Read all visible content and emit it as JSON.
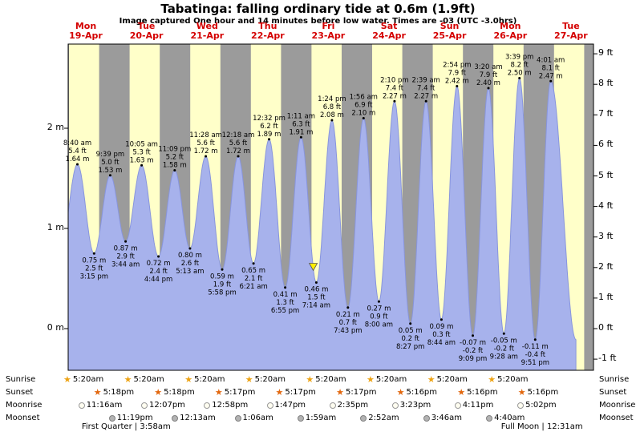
{
  "title": "Tabatinga: falling ordinary tide at 0.6m (1.9ft)",
  "subtitle": "Image captured One hour and 14 minutes before low water. Times are -03 (UTC -3.0hrs)",
  "colors": {
    "day_band": "#ffffc9",
    "night_band": "#9b9b9b",
    "tide_fill": "#a7b2ec",
    "tide_edge": "#8895dd",
    "day_label_red": "#d40000",
    "annotation_text": "#000000",
    "marker_yellow": "#ffee00",
    "sun_rise_icon": "#eda211",
    "sun_set_icon": "#e2670e",
    "moon_rise_fill": "#fffdf0",
    "moon_rise_border": "#999999",
    "moon_set_fill": "#b3b3b3",
    "moon_set_border": "#808080"
  },
  "chart_data": {
    "type": "area",
    "title": "Tide height curve for Tabatinga, 19-Apr to 27-Apr",
    "ylabel_left": "m",
    "ylabel_right": "ft",
    "ylim_m": [
      -0.42,
      2.84
    ],
    "grid": false,
    "days": [
      {
        "name": "Mon",
        "date": "19-Apr"
      },
      {
        "name": "Tue",
        "date": "20-Apr"
      },
      {
        "name": "Wed",
        "date": "21-Apr"
      },
      {
        "name": "Thu",
        "date": "22-Apr"
      },
      {
        "name": "Fri",
        "date": "23-Apr"
      },
      {
        "name": "Sat",
        "date": "24-Apr"
      },
      {
        "name": "Sun",
        "date": "25-Apr"
      },
      {
        "name": "Mon",
        "date": "26-Apr"
      },
      {
        "name": "Tue",
        "date": "27-Apr"
      }
    ],
    "axis": {
      "left_labels": [
        "2 m",
        "1 m",
        "0 m"
      ],
      "left_values": [
        2,
        1,
        0
      ],
      "right_labels": [
        "9 ft",
        "8 ft",
        "7 ft",
        "6 ft",
        "5 ft",
        "4 ft",
        "3 ft",
        "2 ft",
        "1 ft",
        "0 ft",
        "-1 ft"
      ],
      "right_values": [
        9,
        8,
        7,
        6,
        5,
        4,
        3,
        2,
        1,
        0,
        -1
      ]
    },
    "daylight": {
      "sunrise_hour": 5.33,
      "sunset_hour": 17.28
    },
    "current_time_marker": {
      "day": 4,
      "time": "6:00 am",
      "m": 0.58
    },
    "extremes": [
      {
        "kind": "low",
        "day": 0,
        "time": "2:20 am",
        "m": 0.86,
        "annotate": false
      },
      {
        "kind": "high",
        "day": 0,
        "time": "8:40 am",
        "m": 1.64,
        "ft": "5.4 ft",
        "m_label": "1.64 m",
        "annotate": true
      },
      {
        "kind": "low",
        "day": 0,
        "time": "3:15 pm",
        "m": 0.75,
        "ft": "2.5 ft",
        "m_label": "0.75 m",
        "annotate": true
      },
      {
        "kind": "high",
        "day": 0,
        "time": "9:39 pm",
        "m": 1.53,
        "ft": "5.0 ft",
        "m_label": "1.53 m",
        "annotate": true
      },
      {
        "kind": "low",
        "day": 1,
        "time": "3:44 am",
        "m": 0.87,
        "ft": "2.9 ft",
        "m_label": "0.87 m",
        "annotate": true
      },
      {
        "kind": "high",
        "day": 1,
        "time": "10:05 am",
        "m": 1.63,
        "ft": "5.3 ft",
        "m_label": "1.63 m",
        "annotate": true
      },
      {
        "kind": "low",
        "day": 1,
        "time": "4:44 pm",
        "m": 0.72,
        "ft": "2.4 ft",
        "m_label": "0.72 m",
        "annotate": true
      },
      {
        "kind": "high",
        "day": 1,
        "time": "11:09 pm",
        "m": 1.58,
        "ft": "5.2 ft",
        "m_label": "1.58 m",
        "annotate": true
      },
      {
        "kind": "low",
        "day": 2,
        "time": "5:13 am",
        "m": 0.8,
        "ft": "2.6 ft",
        "m_label": "0.80 m",
        "annotate": true
      },
      {
        "kind": "high",
        "day": 2,
        "time": "11:28 am",
        "m": 1.72,
        "ft": "5.6 ft",
        "m_label": "1.72 m",
        "annotate": true
      },
      {
        "kind": "low",
        "day": 2,
        "time": "5:58 pm",
        "m": 0.59,
        "ft": "1.9 ft",
        "m_label": "0.59 m",
        "annotate": true
      },
      {
        "kind": "high",
        "day": 3,
        "time": "12:18 am",
        "m": 1.72,
        "ft": "5.6 ft",
        "m_label": "1.72 m",
        "annotate": true
      },
      {
        "kind": "low",
        "day": 3,
        "time": "6:21 am",
        "m": 0.65,
        "ft": "2.1 ft",
        "m_label": "0.65 m",
        "annotate": true
      },
      {
        "kind": "high",
        "day": 3,
        "time": "12:32 pm",
        "m": 1.89,
        "ft": "6.2 ft",
        "m_label": "1.89 m",
        "annotate": true
      },
      {
        "kind": "low",
        "day": 3,
        "time": "6:55 pm",
        "m": 0.41,
        "ft": "1.3 ft",
        "m_label": "0.41 m",
        "annotate": true
      },
      {
        "kind": "high",
        "day": 4,
        "time": "1:11 am",
        "m": 1.91,
        "ft": "6.3 ft",
        "m_label": "1.91 m",
        "annotate": true
      },
      {
        "kind": "low",
        "day": 4,
        "time": "7:14 am",
        "m": 0.46,
        "ft": "1.5 ft",
        "m_label": "0.46 m",
        "annotate": true
      },
      {
        "kind": "high",
        "day": 4,
        "time": "1:24 pm",
        "m": 2.08,
        "ft": "6.8 ft",
        "m_label": "2.08 m",
        "annotate": true
      },
      {
        "kind": "low",
        "day": 4,
        "time": "7:43 pm",
        "m": 0.21,
        "ft": "0.7 ft",
        "m_label": "0.21 m",
        "annotate": true
      },
      {
        "kind": "high",
        "day": 5,
        "time": "1:56 am",
        "m": 2.1,
        "ft": "6.9 ft",
        "m_label": "2.10 m",
        "annotate": true
      },
      {
        "kind": "low",
        "day": 5,
        "time": "8:00 am",
        "m": 0.27,
        "ft": "0.9 ft",
        "m_label": "0.27 m",
        "annotate": true
      },
      {
        "kind": "high",
        "day": 5,
        "time": "2:10 pm",
        "m": 2.27,
        "ft": "7.4 ft",
        "m_label": "2.27 m",
        "annotate": true
      },
      {
        "kind": "low",
        "day": 5,
        "time": "8:27 pm",
        "m": 0.05,
        "ft": "0.2 ft",
        "m_label": "0.05 m",
        "annotate": true
      },
      {
        "kind": "high",
        "day": 6,
        "time": "2:39 am",
        "m": 2.27,
        "ft": "7.4 ft",
        "m_label": "2.27 m",
        "annotate": true
      },
      {
        "kind": "low",
        "day": 6,
        "time": "8:44 am",
        "m": 0.09,
        "ft": "0.3 ft",
        "m_label": "0.09 m",
        "annotate": true
      },
      {
        "kind": "high",
        "day": 6,
        "time": "2:54 pm",
        "m": 2.42,
        "ft": "7.9 ft",
        "m_label": "2.42 m",
        "annotate": true
      },
      {
        "kind": "low",
        "day": 6,
        "time": "9:09 pm",
        "m": -0.07,
        "ft": "-0.2 ft",
        "m_label": "-0.07 m",
        "annotate": true
      },
      {
        "kind": "high",
        "day": 7,
        "time": "3:20 am",
        "m": 2.4,
        "ft": "7.9 ft",
        "m_label": "2.40 m",
        "annotate": true
      },
      {
        "kind": "low",
        "day": 7,
        "time": "9:28 am",
        "m": -0.05,
        "ft": "-0.2 ft",
        "m_label": "-0.05 m",
        "annotate": true
      },
      {
        "kind": "high",
        "day": 7,
        "time": "3:39 pm",
        "m": 2.5,
        "ft": "8.2 ft",
        "m_label": "2.50 m",
        "annotate": true
      },
      {
        "kind": "low",
        "day": 7,
        "time": "9:51 pm",
        "m": -0.11,
        "ft": "-0.4 ft",
        "m_label": "-0.11 m",
        "annotate": true
      },
      {
        "kind": "high",
        "day": 8,
        "time": "4:01 am",
        "m": 2.47,
        "ft": "8.1 ft",
        "m_label": "2.47 m",
        "annotate": true
      },
      {
        "kind": "low",
        "day": 8,
        "time": "2:00 pm",
        "m": -0.11,
        "annotate": false
      }
    ]
  },
  "footer": {
    "rows": [
      {
        "id": "sunrise",
        "label": "Sunrise",
        "icon": "sun-rise",
        "events": [
          {
            "day": 0,
            "time": "5:20am"
          },
          {
            "day": 1,
            "time": "5:20am"
          },
          {
            "day": 2,
            "time": "5:20am"
          },
          {
            "day": 3,
            "time": "5:20am"
          },
          {
            "day": 4,
            "time": "5:20am"
          },
          {
            "day": 5,
            "time": "5:20am"
          },
          {
            "day": 6,
            "time": "5:20am"
          },
          {
            "day": 7,
            "time": "5:20am"
          }
        ]
      },
      {
        "id": "sunset",
        "label": "Sunset",
        "icon": "sun-set",
        "events": [
          {
            "day": 0,
            "time": "5:18pm"
          },
          {
            "day": 1,
            "time": "5:18pm"
          },
          {
            "day": 2,
            "time": "5:17pm"
          },
          {
            "day": 3,
            "time": "5:17pm"
          },
          {
            "day": 4,
            "time": "5:17pm"
          },
          {
            "day": 5,
            "time": "5:16pm"
          },
          {
            "day": 6,
            "time": "5:16pm"
          },
          {
            "day": 7,
            "time": "5:16pm"
          }
        ]
      },
      {
        "id": "moonrise",
        "label": "Moonrise",
        "icon": "moon-rise",
        "events": [
          {
            "day": 0,
            "time": "11:16am"
          },
          {
            "day": 1,
            "time": "12:07pm"
          },
          {
            "day": 2,
            "time": "12:58pm"
          },
          {
            "day": 3,
            "time": "1:47pm"
          },
          {
            "day": 4,
            "time": "2:35pm"
          },
          {
            "day": 5,
            "time": "3:23pm"
          },
          {
            "day": 6,
            "time": "4:11pm"
          },
          {
            "day": 7,
            "time": "5:02pm"
          }
        ]
      },
      {
        "id": "moonset",
        "label": "Moonset",
        "icon": "moon-set",
        "events": [
          {
            "day": 0,
            "time": "11:19pm"
          },
          {
            "day": 2,
            "time": "12:13am"
          },
          {
            "day": 3,
            "time": "1:06am"
          },
          {
            "day": 4,
            "time": "1:59am"
          },
          {
            "day": 5,
            "time": "2:52am"
          },
          {
            "day": 6,
            "time": "3:46am"
          },
          {
            "day": 7,
            "time": "4:40am"
          }
        ]
      }
    ],
    "moon_phases": [
      {
        "label": "First Quarter | 3:58am",
        "day": 1,
        "time": "3:58am"
      },
      {
        "label": "Full Moon | 12:31am",
        "day": 8,
        "time": "12:31am"
      }
    ]
  }
}
